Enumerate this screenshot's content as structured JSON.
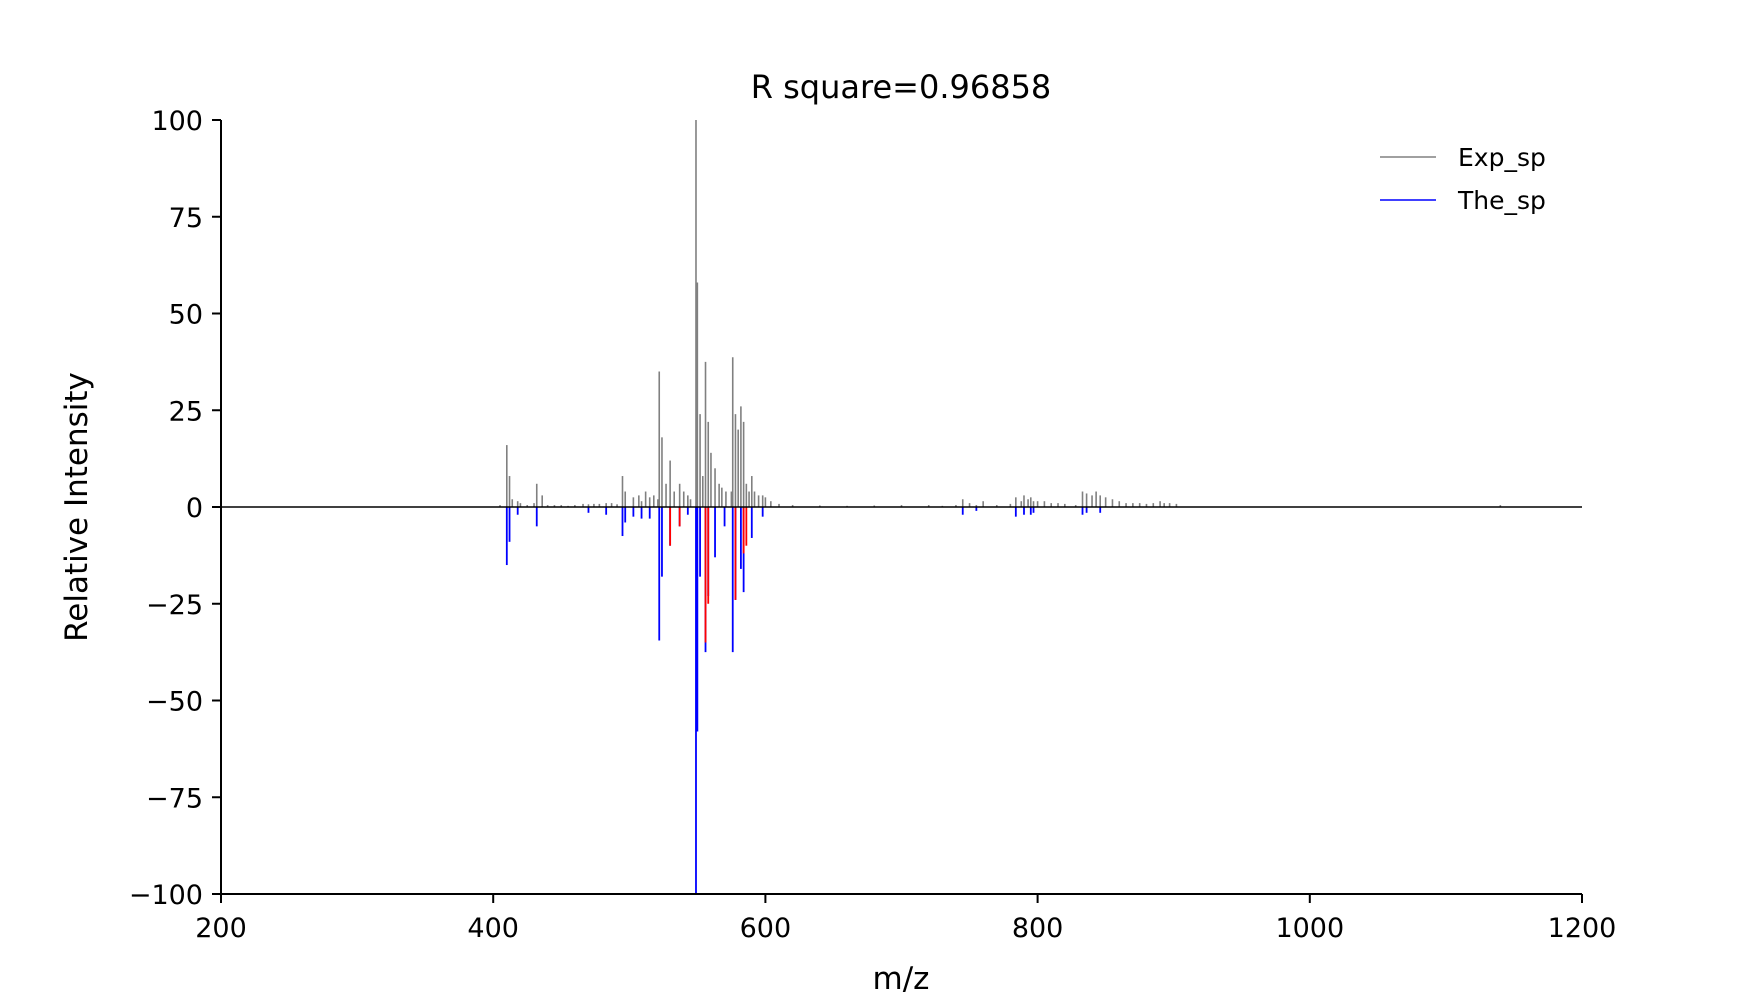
{
  "chart_data": {
    "type": "bar",
    "title": "R square=0.96858",
    "xlabel": "m/z",
    "ylabel": "Relative Intensity",
    "xlim": [
      200,
      1200
    ],
    "ylim": [
      -100,
      100
    ],
    "xticks": [
      200,
      400,
      600,
      800,
      1000,
      1200
    ],
    "yticks": [
      100,
      75,
      50,
      25,
      0,
      -25,
      -50,
      -75,
      -100
    ],
    "ytick_labels": [
      "100",
      "75",
      "50",
      "25",
      "0",
      "−25",
      "−50",
      "−75",
      "−100"
    ],
    "legend_position": "top-right",
    "grid": false,
    "colors": {
      "exp": "#808080",
      "the": "#0000ff",
      "mismatch": "#ff0000",
      "baseline": "#000000"
    },
    "series": [
      {
        "name": "Exp_sp",
        "style": "stem-up",
        "x": [
          405,
          410,
          412,
          414,
          418,
          420,
          425,
          430,
          432,
          436,
          440,
          445,
          450,
          455,
          460,
          466,
          470,
          474,
          478,
          483,
          487,
          491,
          495,
          497,
          503,
          507,
          509,
          512,
          515,
          518,
          521,
          522,
          524,
          527,
          530,
          533,
          537,
          540,
          543,
          545,
          549,
          550,
          552,
          554,
          556,
          558,
          560,
          563,
          566,
          568,
          571,
          575,
          576,
          578,
          580,
          582,
          584,
          586,
          588,
          590,
          592,
          595,
          598,
          600,
          604,
          610,
          620,
          640,
          660,
          680,
          700,
          720,
          730,
          740,
          745,
          750,
          755,
          760,
          770,
          780,
          784,
          788,
          790,
          793,
          795,
          797,
          800,
          805,
          810,
          815,
          820,
          828,
          833,
          836,
          840,
          843,
          846,
          850,
          855,
          860,
          865,
          870,
          875,
          880,
          885,
          890,
          893,
          897,
          902,
          1140
        ],
        "values": [
          0.5,
          16,
          8,
          2,
          1.5,
          1,
          0.5,
          1,
          6,
          3,
          0.5,
          0.5,
          0.5,
          0.3,
          0.5,
          0.8,
          0.7,
          0.8,
          0.8,
          1,
          1,
          0.7,
          8,
          4,
          2.5,
          3,
          1.5,
          4,
          2.5,
          3,
          2,
          35,
          18,
          6,
          12,
          4,
          6,
          4,
          3,
          2,
          100,
          58,
          24,
          8,
          37.5,
          22,
          14,
          10,
          6,
          5,
          4,
          4,
          38.7,
          24,
          20,
          26,
          22,
          6,
          4,
          8,
          4,
          3,
          3,
          2.5,
          1.5,
          0.8,
          0.5,
          0.4,
          0.3,
          0.4,
          0.5,
          0.5,
          0.3,
          0.5,
          2,
          1,
          0.5,
          1.5,
          0.5,
          0.8,
          2.5,
          1.5,
          3,
          2,
          2.5,
          1.5,
          1.5,
          1.5,
          1,
          1,
          0.8,
          0.5,
          4,
          3.5,
          3,
          4,
          3,
          2.5,
          2,
          1.5,
          1,
          1,
          1,
          0.8,
          1,
          1.5,
          1,
          1,
          0.8,
          0.5
        ]
      },
      {
        "name": "The_sp",
        "style": "stem-down",
        "x": [
          410,
          412,
          418,
          432,
          470,
          483,
          495,
          497,
          503,
          509,
          515,
          522,
          524,
          530,
          537,
          543,
          549,
          550,
          552,
          556,
          558,
          563,
          570,
          576,
          578,
          582,
          584,
          590,
          598,
          745,
          755,
          784,
          790,
          795,
          797,
          833,
          836,
          846
        ],
        "values": [
          -15,
          -9,
          -2,
          -5,
          -1.5,
          -2,
          -7.5,
          -4,
          -2.5,
          -3,
          -3,
          -34.5,
          -18,
          -10,
          -5,
          -2,
          -100,
          -58,
          -18,
          -37.5,
          -23,
          -13,
          -5,
          -37.5,
          -24,
          -16,
          -22,
          -8,
          -2.5,
          -2,
          -1,
          -2.5,
          -2,
          -2,
          -1.5,
          -2,
          -1.5,
          -1.5
        ]
      },
      {
        "name": "",
        "style": "stem-down-mismatch",
        "x": [
          530,
          537,
          556,
          558,
          578,
          584,
          586
        ],
        "values": [
          -10,
          -5,
          -35,
          -25,
          -24,
          -12,
          -10
        ]
      }
    ]
  }
}
